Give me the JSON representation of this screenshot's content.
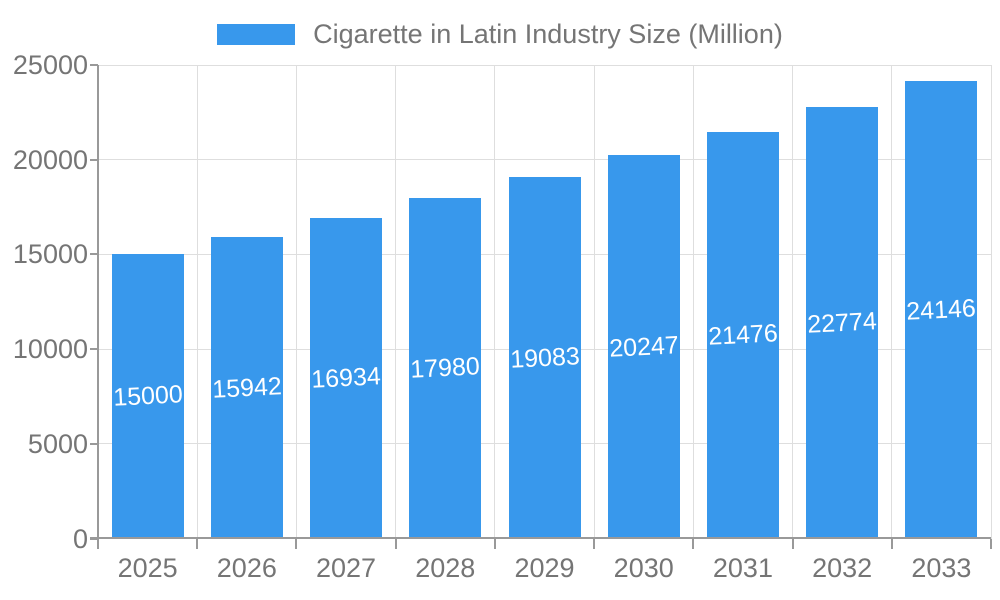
{
  "chart_data": {
    "type": "bar",
    "title": "Cigarette in Latin Industry Size (Million)",
    "categories": [
      "2025",
      "2026",
      "2027",
      "2028",
      "2029",
      "2030",
      "2031",
      "2032",
      "2033"
    ],
    "values": [
      15000,
      15942,
      16934,
      17980,
      19083,
      20247,
      21476,
      22774,
      24146
    ],
    "xlabel": "",
    "ylabel": "",
    "ylim": [
      0,
      25000
    ],
    "yticks": [
      0,
      5000,
      10000,
      15000,
      20000,
      25000
    ],
    "grid": true,
    "value_labels_shown": true,
    "legend_position": "top-center",
    "colors": {
      "bar": "#3898EC",
      "value_label": "#FFFFFF",
      "axis_text": "#757575",
      "grid_line": "#DEDEDE",
      "axis_line": "#999999",
      "background": "#FFFFFF"
    }
  }
}
